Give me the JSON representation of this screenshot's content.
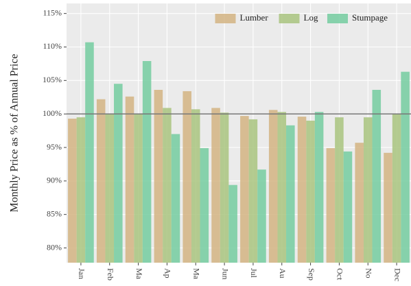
{
  "chart_data": {
    "type": "bar",
    "y_label": "Monthly Price as % of Annual Price",
    "categories": [
      "Jan",
      "Feb",
      "Ma",
      "Ap",
      "Ma",
      "Jun",
      "Jul",
      "Au",
      "Sep",
      "Oct",
      "No",
      "Dec"
    ],
    "series": [
      {
        "name": "Lumber",
        "color": "#d4b483",
        "values": [
          99.3,
          102.2,
          102.6,
          103.6,
          103.4,
          100.9,
          99.7,
          100.6,
          99.6,
          94.9,
          95.7,
          94.2
        ]
      },
      {
        "name": "Log",
        "color": "#a9c47f",
        "values": [
          99.5,
          100.0,
          100.0,
          100.9,
          100.7,
          100.2,
          99.2,
          100.3,
          99.0,
          99.5,
          99.5,
          100.0
        ]
      },
      {
        "name": "Stumpage",
        "color": "#74cca0",
        "values": [
          110.7,
          104.5,
          107.9,
          97.0,
          94.9,
          89.4,
          91.7,
          98.3,
          100.3,
          94.4,
          103.6,
          106.3
        ]
      }
    ],
    "ylim": [
      77.8,
      116.5
    ],
    "yticks": [
      {
        "value": 80,
        "label": "80%"
      },
      {
        "value": 85,
        "label": "85%"
      },
      {
        "value": 90,
        "label": "90%"
      },
      {
        "value": 95,
        "label": "95%"
      },
      {
        "value": 100,
        "label": "100%"
      },
      {
        "value": 105,
        "label": "105%"
      },
      {
        "value": 110,
        "label": "110%"
      },
      {
        "value": 115,
        "label": "115%"
      }
    ],
    "reference_line": 100,
    "grid": true,
    "legend_position": "top-right"
  }
}
